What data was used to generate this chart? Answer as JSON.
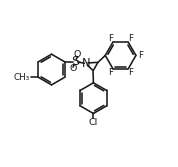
{
  "bg_color": "#ffffff",
  "bond_color": "#1a1a1a",
  "text_color": "#1a1a1a",
  "line_width": 1.15,
  "font_size": 6.8,
  "figsize": [
    1.78,
    1.67
  ],
  "dpi": 100,
  "xlim": [
    -1.0,
    9.0
  ],
  "ylim": [
    1.0,
    10.5
  ]
}
